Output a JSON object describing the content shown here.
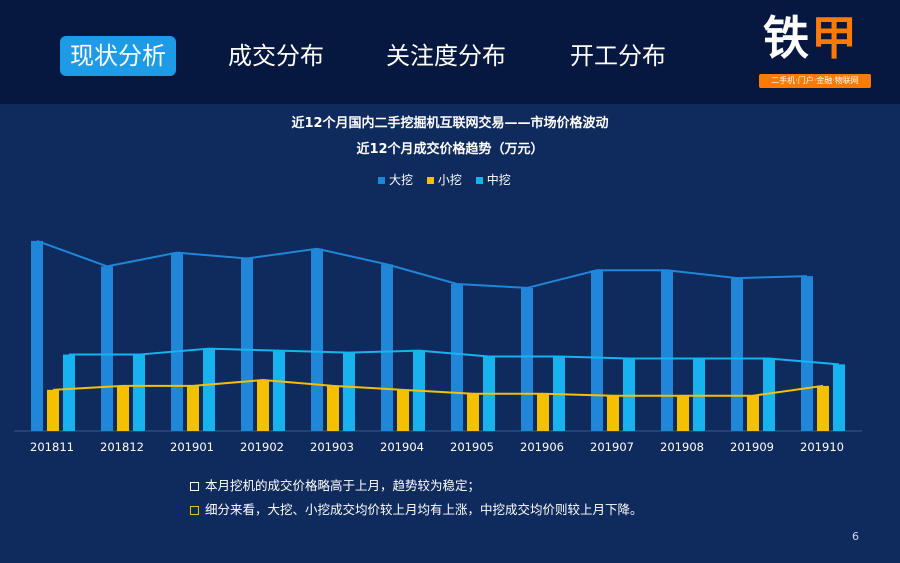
{
  "nav": {
    "tabs": [
      {
        "label": "现状分析",
        "active": true
      },
      {
        "label": "成交分布",
        "active": false
      },
      {
        "label": "关注度分布",
        "active": false
      },
      {
        "label": "开工分布",
        "active": false
      }
    ]
  },
  "logo": {
    "text_a": "铁",
    "text_b": "甲",
    "tagline": "二手机·门户·金融·物联网"
  },
  "chart_data": {
    "type": "bar",
    "title": "近12个月国内二手挖掘机互联网交易——市场价格波动",
    "subtitle": "近12个月成交价格趋势（万元）",
    "categories": [
      "201811",
      "201812",
      "201901",
      "201902",
      "201903",
      "201904",
      "201905",
      "201906",
      "201907",
      "201908",
      "201909",
      "201910"
    ],
    "series": [
      {
        "name": "大挖",
        "color": "#1f86d8",
        "values": [
          97,
          84,
          91,
          88,
          93,
          85,
          75,
          73,
          82,
          82,
          78,
          79
        ]
      },
      {
        "name": "小挖",
        "color": "#f5c000",
        "values": [
          21,
          23,
          23,
          26,
          23,
          21,
          19,
          19,
          18,
          18,
          18,
          23
        ]
      },
      {
        "name": "中挖",
        "color": "#17b3ef",
        "values": [
          39,
          39,
          42,
          41,
          40,
          41,
          38,
          38,
          37,
          37,
          37,
          34
        ]
      }
    ],
    "ylim": [
      0,
      100
    ],
    "legend": "top-center",
    "grid": false
  },
  "notes": [
    "本月挖机的成交价格略高于上月，趋势较为稳定；",
    "细分来看，大挖、小挖成交均价较上月均有上涨，中挖成交均价则较上月下降。"
  ],
  "page_number": "6",
  "colors": {
    "background": "#0f2a5c",
    "topbar": "#06183f",
    "active_tab": "#1e9be6",
    "brand_orange": "#ff7a00"
  }
}
